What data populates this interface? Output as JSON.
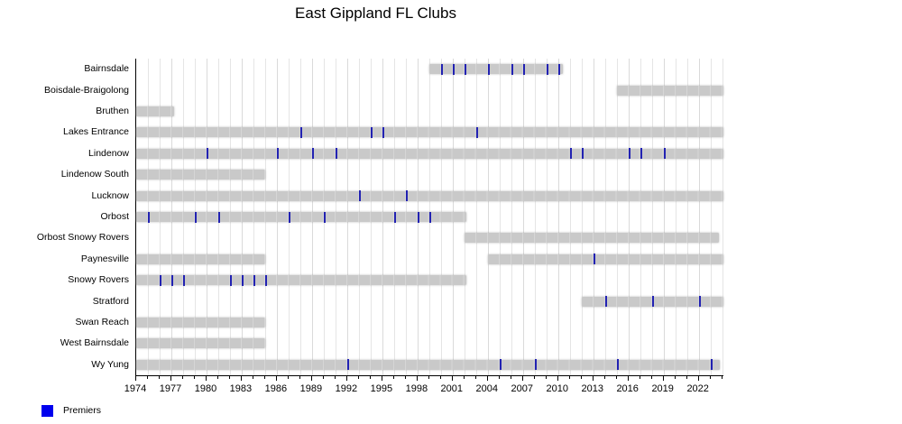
{
  "title": "East Gippland FL Clubs",
  "legend": {
    "label": "Premiers",
    "swatch_color": "#0000ee"
  },
  "colors": {
    "bar": "#c9c9c9",
    "bar_seam": "#d6d6d6",
    "premier_mark": "#2222b2",
    "grid_minor": "#e5e5e5",
    "grid_major": "#dadada",
    "axis": "#000000",
    "text": "#000000",
    "background": "#ffffff"
  },
  "chart_data": {
    "type": "timeline-gantt",
    "title": "East Gippland FL Clubs",
    "xlabel": "",
    "ylabel": "",
    "grid": true,
    "legend_position": "bottom-left",
    "x_axis": {
      "min": 1974,
      "max": 2024.1,
      "major_tick_step": 3,
      "minor_tick_step": 1,
      "tick_labels": [
        1974,
        1977,
        1980,
        1983,
        1986,
        1989,
        1992,
        1995,
        1998,
        2001,
        2004,
        2007,
        2010,
        2013,
        2016,
        2019,
        2022
      ]
    },
    "clubs": [
      {
        "name": "Bairnsdale",
        "periods": [
          [
            1999,
            2010.4
          ]
        ],
        "premierships": [
          2000,
          2001,
          2002,
          2004,
          2006,
          2007,
          2009,
          2010
        ]
      },
      {
        "name": "Boisdale-Braigolong",
        "periods": [
          [
            2015,
            2024.1
          ]
        ],
        "premierships": []
      },
      {
        "name": "Bruthen",
        "periods": [
          [
            1974,
            1977.2
          ]
        ],
        "premierships": []
      },
      {
        "name": "Lakes Entrance",
        "periods": [
          [
            1974,
            2024.1
          ]
        ],
        "premierships": [
          1988,
          1994,
          1995,
          2003
        ]
      },
      {
        "name": "Lindenow",
        "periods": [
          [
            1974,
            2024.1
          ]
        ],
        "premierships": [
          1980,
          1986,
          1989,
          1991,
          2011,
          2012,
          2016,
          2017,
          2019
        ]
      },
      {
        "name": "Lindenow South",
        "periods": [
          [
            1974,
            1985
          ]
        ],
        "premierships": []
      },
      {
        "name": "Lucknow",
        "periods": [
          [
            1974,
            2024.1
          ]
        ],
        "premierships": [
          1993,
          1997
        ]
      },
      {
        "name": "Orbost",
        "periods": [
          [
            1974,
            2002.2
          ]
        ],
        "premierships": [
          1975,
          1979,
          1981,
          1987,
          1990,
          1996,
          1998,
          1999
        ]
      },
      {
        "name": "Orbost Snowy Rovers",
        "periods": [
          [
            2002,
            2023.7
          ]
        ],
        "premierships": []
      },
      {
        "name": "Paynesville",
        "periods": [
          [
            1974,
            1985
          ],
          [
            2004,
            2024.1
          ]
        ],
        "premierships": [
          2013
        ]
      },
      {
        "name": "Snowy Rovers",
        "periods": [
          [
            1974,
            2002.2
          ]
        ],
        "premierships": [
          1976,
          1977,
          1978,
          1982,
          1983,
          1984,
          1985
        ]
      },
      {
        "name": "Stratford",
        "periods": [
          [
            2012,
            2024.1
          ]
        ],
        "premierships": [
          2014,
          2018,
          2022
        ]
      },
      {
        "name": "Swan Reach",
        "periods": [
          [
            1974,
            1985
          ]
        ],
        "premierships": []
      },
      {
        "name": "West Bairnsdale",
        "periods": [
          [
            1974,
            1985
          ]
        ],
        "premierships": []
      },
      {
        "name": "Wy Yung",
        "periods": [
          [
            1974,
            2023.8
          ]
        ],
        "premierships": [
          1992,
          2005,
          2008,
          2015,
          2023
        ]
      }
    ]
  }
}
